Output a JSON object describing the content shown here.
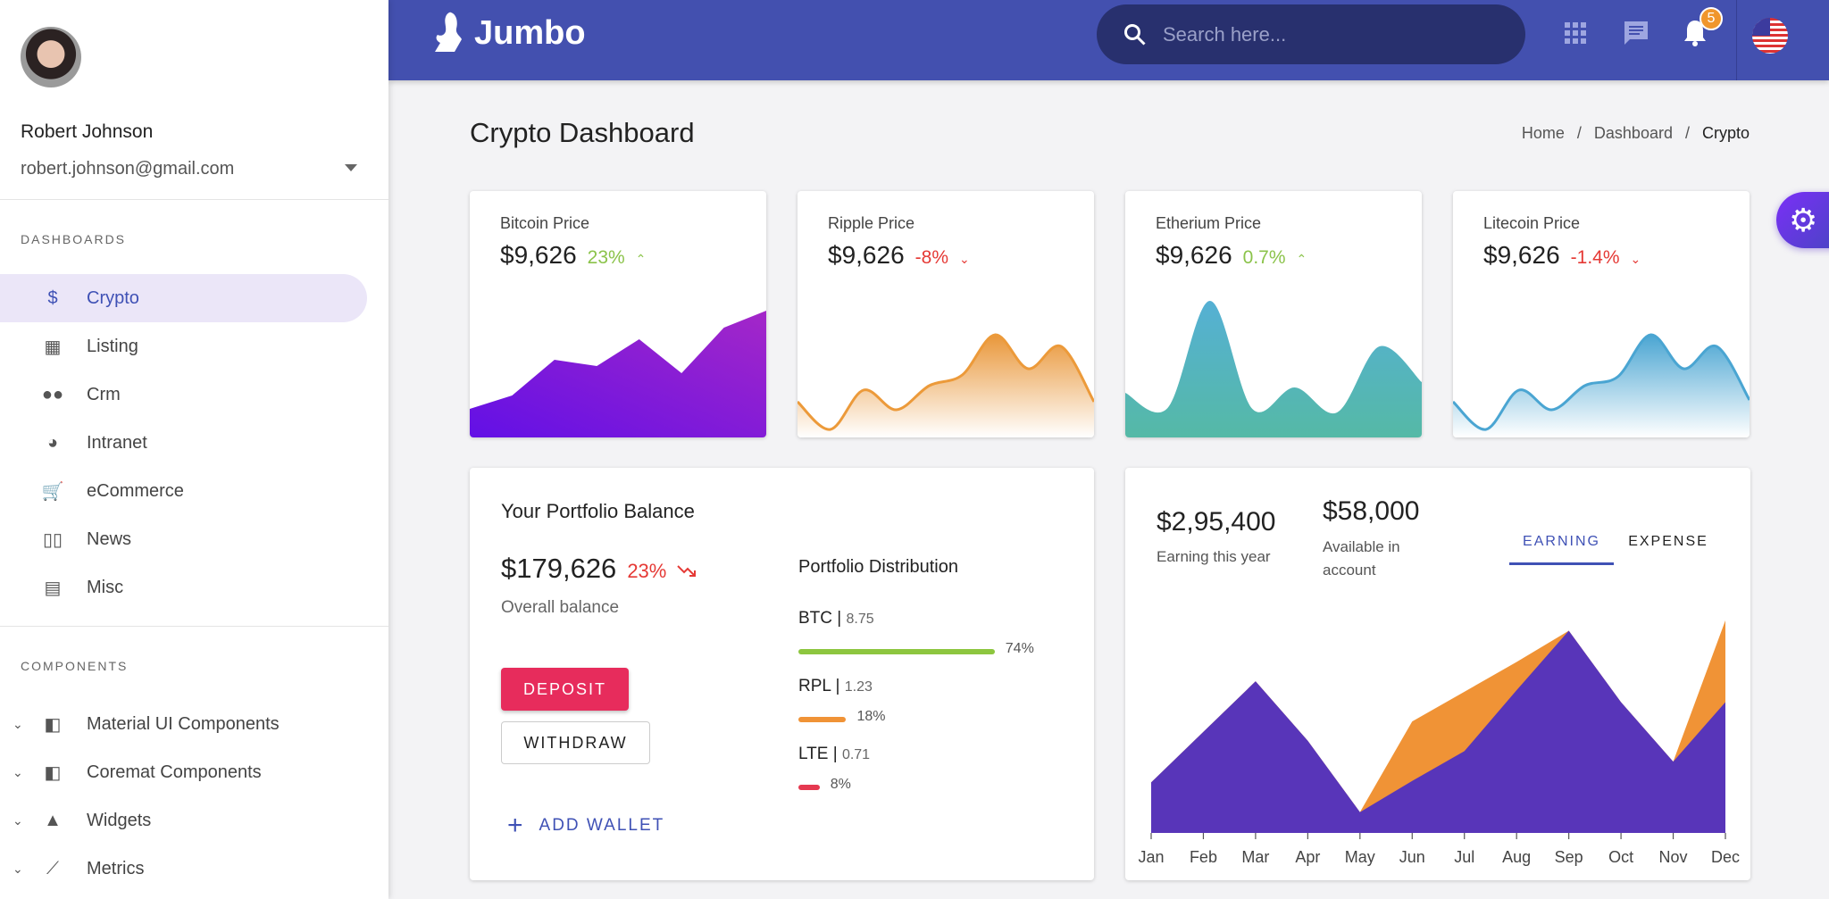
{
  "user": {
    "name": "Robert Johnson",
    "email": "robert.johnson@gmail.com"
  },
  "sidebar": {
    "dashboards_label": "DASHBOARDS",
    "dashboards": [
      {
        "label": "Crypto",
        "icon": "dollar-circle-icon",
        "glyph": "$",
        "active": true
      },
      {
        "label": "Listing",
        "icon": "building-icon",
        "glyph": "▦"
      },
      {
        "label": "Crm",
        "icon": "people-icon",
        "glyph": "●●"
      },
      {
        "label": "Intranet",
        "icon": "pie-chart-icon",
        "glyph": "◕"
      },
      {
        "label": "eCommerce",
        "icon": "cart-icon",
        "glyph": "🛒"
      },
      {
        "label": "News",
        "icon": "book-open-icon",
        "glyph": "▯▯"
      },
      {
        "label": "Misc",
        "icon": "library-books-icon",
        "glyph": "▤"
      }
    ],
    "components_label": "COMPONENTS",
    "components": [
      {
        "label": "Material UI Components",
        "icon": "widgets-icon",
        "glyph": "◧"
      },
      {
        "label": "Coremat Components",
        "icon": "widgets-icon",
        "glyph": "◧"
      },
      {
        "label": "Widgets",
        "icon": "shapes-icon",
        "glyph": "▲"
      },
      {
        "label": "Metrics",
        "icon": "trending-line-icon",
        "glyph": "⟋"
      }
    ]
  },
  "header": {
    "logo": "Jumbo",
    "search_placeholder": "Search here...",
    "notification_count": "5"
  },
  "page": {
    "title": "Crypto Dashboard",
    "breadcrumb": [
      "Home",
      "Dashboard",
      "Crypto"
    ]
  },
  "price_cards": [
    {
      "label": "Bitcoin Price",
      "value": "$9,626",
      "change": "23%",
      "trend": "up",
      "color": "#8bc34a",
      "spark": [
        32,
        47,
        87,
        80,
        110,
        72,
        123,
        142
      ],
      "smooth": false,
      "fill_from": "#a427c8",
      "fill_to": "#6210e6",
      "line": "none"
    },
    {
      "label": "Ripple Price",
      "value": "$9,626",
      "change": "-8%",
      "trend": "down",
      "color": "#e53935",
      "spark": [
        40,
        9,
        53,
        31,
        58,
        70,
        115,
        77,
        102,
        40
      ],
      "smooth": true,
      "fill_from": "#e9973a",
      "fill_to": "#ffffff",
      "line": "#ec9a3a"
    },
    {
      "label": "Etherium Price",
      "value": "$9,626",
      "change": "0.7%",
      "trend": "up",
      "color": "#8bc34a",
      "spark": [
        50,
        33,
        153,
        32,
        56,
        28,
        102,
        62
      ],
      "smooth": true,
      "fill_from": "#55b0d4",
      "fill_to": "#55b9a6",
      "line": "none"
    },
    {
      "label": "Litecoin Price",
      "value": "$9,626",
      "change": "-1.4%",
      "trend": "down",
      "color": "#e53935",
      "spark": [
        40,
        9,
        53,
        31,
        58,
        68,
        115,
        77,
        102,
        42
      ],
      "smooth": true,
      "fill_from": "#4aa5d2",
      "fill_to": "#ffffff",
      "line": "#4aa5d2"
    }
  ],
  "portfolio": {
    "title": "Your Portfolio Balance",
    "balance": "$179,626",
    "change": "23%",
    "balance_label": "Overall balance",
    "deposit": "DEPOSIT",
    "withdraw": "WITHDRAW",
    "add_wallet": "ADD WALLET",
    "dist_title": "Portfolio Distribution",
    "distribution": [
      {
        "coin": "BTC",
        "amount": "8.75",
        "percent": "74%",
        "value": 74,
        "color": "#8dc63f"
      },
      {
        "coin": "RPL",
        "amount": "1.23",
        "percent": "18%",
        "value": 18,
        "color": "#f09336"
      },
      {
        "coin": "LTE",
        "amount": "0.71",
        "percent": "8%",
        "value": 8,
        "color": "#e53950"
      }
    ]
  },
  "earnings": {
    "earning_value": "$2,95,400",
    "earning_label": "Earning this year",
    "available_value": "$58,000",
    "available_label": "Available in account",
    "tabs": [
      {
        "label": "EARNING",
        "active": true
      },
      {
        "label": "EXPENSE",
        "active": false
      }
    ]
  },
  "chart_data": {
    "type": "area",
    "categories": [
      "Jan",
      "Feb",
      "Mar",
      "Apr",
      "May",
      "Jun",
      "Jul",
      "Aug",
      "Sep",
      "Oct",
      "Nov",
      "Dec"
    ],
    "series": [
      {
        "values": [
          17,
          34,
          51,
          31,
          7,
          37.5,
          47.5,
          57.5,
          68,
          44,
          24,
          71.5
        ],
        "color": "#f09336"
      },
      {
        "values": [
          17,
          34,
          51,
          31,
          7,
          17.5,
          27.5,
          48,
          68,
          44,
          24,
          44
        ],
        "color": "#5835b9"
      }
    ],
    "grid": false,
    "legend": "none"
  }
}
